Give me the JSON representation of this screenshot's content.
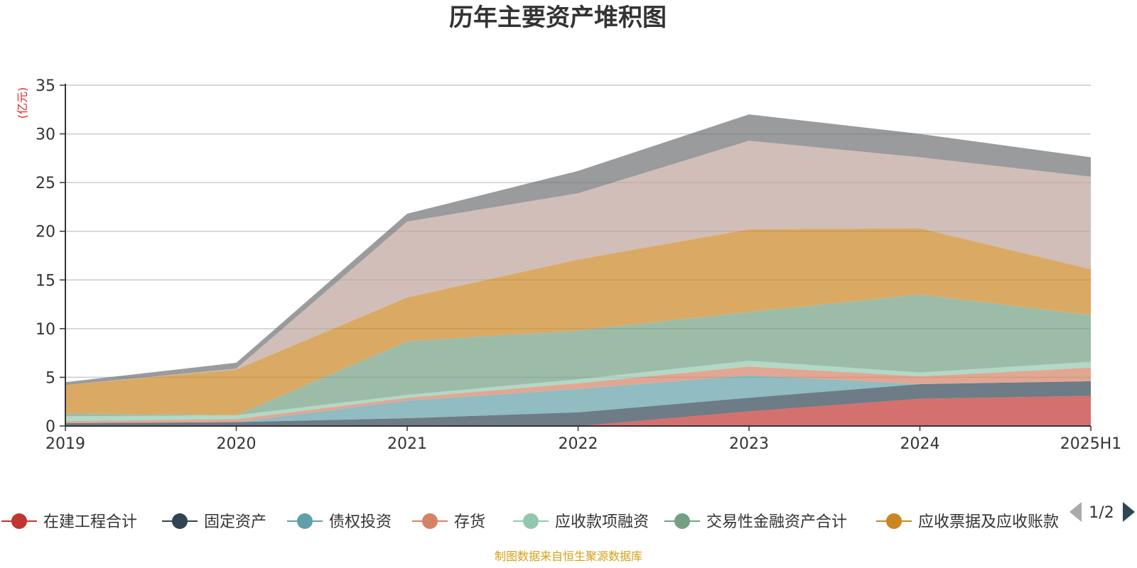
{
  "chart_data": {
    "type": "area",
    "stacked": true,
    "title": "历年主要资产堆积图",
    "unit_label": "(亿元)",
    "categories": [
      "2019",
      "2020",
      "2021",
      "2022",
      "2023",
      "2024",
      "2025H1"
    ],
    "ylim": [
      0,
      35
    ],
    "yticks": [
      0,
      5,
      10,
      15,
      20,
      25,
      30,
      35
    ],
    "grid": true,
    "series": [
      {
        "name": "在建工程合计",
        "color": "#c23531",
        "values": [
          0,
          0,
          0,
          0,
          1.5,
          2.8,
          3.1
        ]
      },
      {
        "name": "固定资产",
        "color": "#2f4554",
        "values": [
          0.3,
          0.4,
          0.8,
          1.4,
          1.4,
          1.5,
          1.5
        ]
      },
      {
        "name": "债权投资",
        "color": "#61a0a8",
        "values": [
          0,
          0,
          1.8,
          2.4,
          2.3,
          0,
          0
        ]
      },
      {
        "name": "存货",
        "color": "#d48265",
        "values": [
          0.2,
          0.3,
          0.3,
          0.6,
          0.9,
          0.8,
          1.4
        ]
      },
      {
        "name": "应收款项融资",
        "color": "#91c7ae",
        "values": [
          0.5,
          0.4,
          0.3,
          0.4,
          0.6,
          0.4,
          0.6
        ]
      },
      {
        "name": "交易性金融资产合计",
        "color": "#749f83",
        "values": [
          0.3,
          0,
          5.5,
          5.0,
          5.0,
          8.0,
          4.8
        ]
      },
      {
        "name": "应收票据及应收账款",
        "color": "#ca8622",
        "values": [
          2.9,
          4.7,
          4.5,
          7.3,
          8.5,
          6.8,
          4.7
        ]
      },
      {
        "name": "",
        "color": "#bda29a",
        "values": [
          0,
          0.1,
          7.8,
          6.8,
          9.1,
          7.3,
          9.5
        ]
      },
      {
        "name": "",
        "color": "#6e7074",
        "values": [
          0.3,
          0.6,
          0.8,
          2.3,
          2.7,
          2.4,
          2.0
        ]
      }
    ],
    "legend": {
      "position": "bottom",
      "page": "1/2"
    },
    "source": "制图数据来自恒生聚源数据库"
  }
}
